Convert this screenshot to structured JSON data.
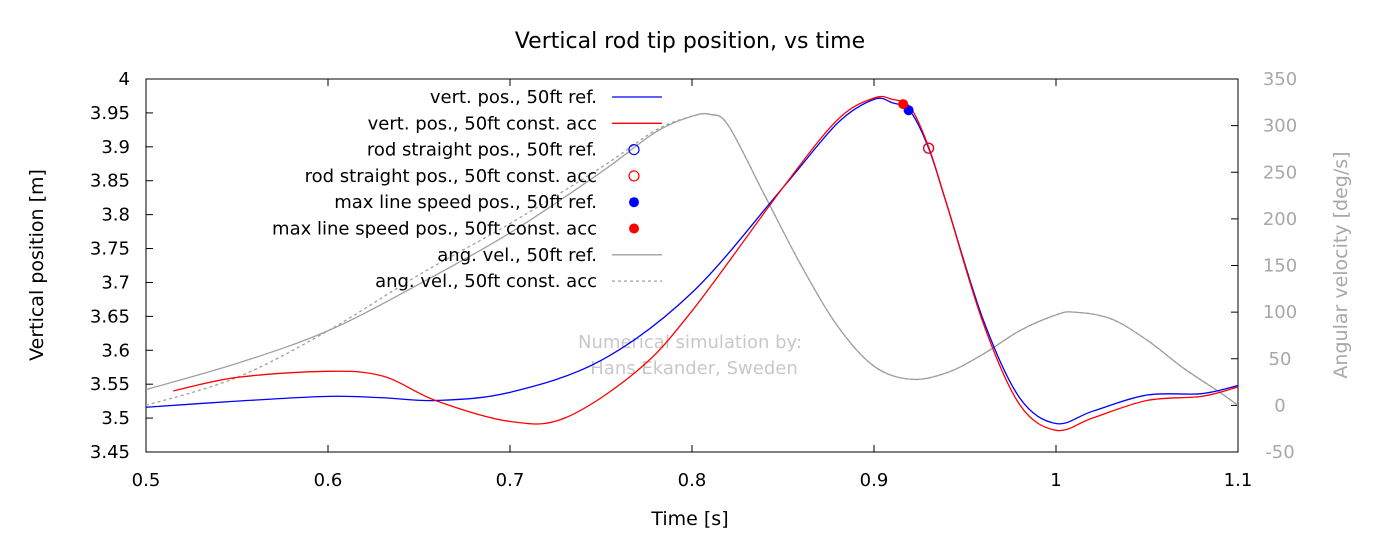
{
  "chart_data": {
    "type": "line",
    "title": "Vertical rod tip position, vs time",
    "xlabel": "Time [s]",
    "ylabel": "Vertical position [m]",
    "y2label": "Angular velocity [deg/s]",
    "xlim": [
      0.5,
      1.1
    ],
    "ylim": [
      3.45,
      4.0
    ],
    "y2lim": [
      -50,
      350
    ],
    "xticks": [
      "0.5",
      "0.6",
      "0.7",
      "0.8",
      "0.9",
      "1",
      "1.1"
    ],
    "yticks": [
      "3.45",
      "3.5",
      "3.55",
      "3.6",
      "3.65",
      "3.7",
      "3.75",
      "3.8",
      "3.85",
      "3.9",
      "3.95",
      "4"
    ],
    "y2ticks": [
      "-50",
      "0",
      "50",
      "100",
      "150",
      "200",
      "250",
      "300",
      "350"
    ],
    "grid": false,
    "legend_position": "top-left",
    "colors": {
      "ref": "#0000ff",
      "const_acc": "#ff0000",
      "ang_vel": "#a0a0a0",
      "right_axis": "#a8a8a8",
      "watermark": "#c8c8c8"
    },
    "watermark": [
      "Numerical simulation by:",
      "Hans Ekander, Sweden"
    ],
    "series": [
      {
        "name": "vert. pos., 50ft ref.",
        "axis": "y",
        "style": "line",
        "color": "#0000ff",
        "x": [
          0.5,
          0.55,
          0.6,
          0.63,
          0.66,
          0.7,
          0.75,
          0.8,
          0.85,
          0.88,
          0.9,
          0.91,
          0.92,
          0.93,
          0.94,
          0.96,
          0.98,
          1.0,
          1.02,
          1.05,
          1.08,
          1.1
        ],
        "y": [
          3.516,
          3.525,
          3.532,
          3.53,
          3.526,
          3.538,
          3.585,
          3.685,
          3.84,
          3.935,
          3.97,
          3.965,
          3.952,
          3.898,
          3.815,
          3.645,
          3.53,
          3.492,
          3.51,
          3.534,
          3.536,
          3.548
        ]
      },
      {
        "name": "vert. pos., 50ft const. acc",
        "axis": "y",
        "style": "line",
        "color": "#ff0000",
        "x": [
          0.515,
          0.55,
          0.6,
          0.63,
          0.66,
          0.7,
          0.73,
          0.77,
          0.8,
          0.85,
          0.88,
          0.9,
          0.91,
          0.92,
          0.93,
          0.94,
          0.96,
          0.98,
          1.0,
          1.02,
          1.05,
          1.08,
          1.1
        ],
        "y": [
          3.54,
          3.56,
          3.569,
          3.562,
          3.525,
          3.495,
          3.5,
          3.57,
          3.658,
          3.84,
          3.94,
          3.972,
          3.97,
          3.958,
          3.9,
          3.815,
          3.64,
          3.52,
          3.482,
          3.5,
          3.526,
          3.532,
          3.546
        ]
      },
      {
        "name": "rod straight pos., 50ft ref.",
        "axis": "y",
        "style": "open-circle",
        "color": "#0000ff",
        "x": [
          0.93
        ],
        "y": [
          3.898
        ]
      },
      {
        "name": "rod straight pos., 50ft const. acc",
        "axis": "y",
        "style": "open-circle",
        "color": "#ff0000",
        "x": [
          0.93
        ],
        "y": [
          3.898
        ]
      },
      {
        "name": "max line speed pos., 50ft ref.",
        "axis": "y",
        "style": "filled-circle",
        "color": "#0000ff",
        "x": [
          0.919
        ],
        "y": [
          3.954
        ]
      },
      {
        "name": "max line speed pos., 50ft const. acc",
        "axis": "y",
        "style": "filled-circle",
        "color": "#ff0000",
        "x": [
          0.916
        ],
        "y": [
          3.963
        ]
      },
      {
        "name": "ang. vel., 50ft ref.",
        "axis": "y2",
        "style": "line",
        "color": "#a0a0a0",
        "x": [
          0.5,
          0.55,
          0.6,
          0.65,
          0.7,
          0.75,
          0.78,
          0.8,
          0.81,
          0.82,
          0.84,
          0.86,
          0.88,
          0.9,
          0.92,
          0.94,
          0.96,
          0.98,
          1.0,
          1.01,
          1.03,
          1.05,
          1.07,
          1.09,
          1.1
        ],
        "y": [
          17,
          45,
          80,
          130,
          185,
          250,
          293,
          310,
          312,
          300,
          225,
          150,
          85,
          42,
          28,
          35,
          55,
          80,
          97,
          100,
          93,
          70,
          40,
          14,
          0
        ]
      },
      {
        "name": "ang. vel., 50ft const. acc",
        "axis": "y2",
        "style": "dashed",
        "color": "#a0a0a0",
        "x": [
          0.5,
          0.55,
          0.6,
          0.65,
          0.7,
          0.75,
          0.78,
          0.8,
          0.81,
          0.82,
          0.84,
          0.86,
          0.88,
          0.9,
          0.92,
          0.94,
          0.96,
          0.98,
          1.0,
          1.01,
          1.03,
          1.05,
          1.07,
          1.09,
          1.1
        ],
        "y": [
          0,
          30,
          80,
          140,
          195,
          255,
          295,
          310,
          312,
          300,
          225,
          150,
          85,
          42,
          28,
          35,
          55,
          80,
          97,
          100,
          93,
          70,
          40,
          14,
          0
        ]
      }
    ]
  }
}
